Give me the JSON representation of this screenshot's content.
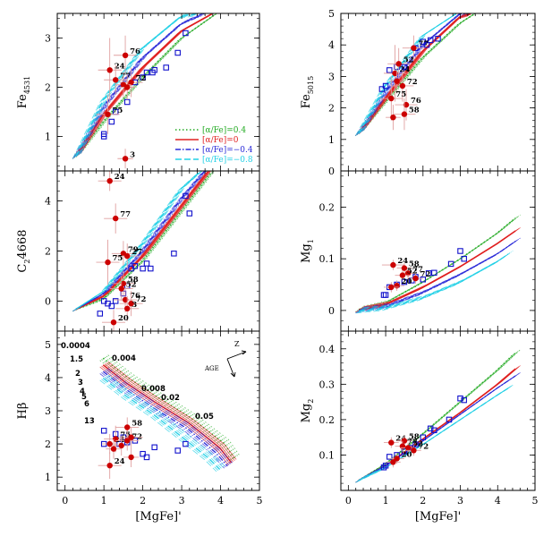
{
  "colors": {
    "alpha_0p4": "#22aa22",
    "alpha_0": "#e02020",
    "alpha_m0p4": "#2a2ad8",
    "alpha_m0p8": "#22d0e6",
    "observed": "#cc0000",
    "errorbar": "#e0a0a0",
    "comparison": "#1111cc"
  },
  "legend": {
    "entries": [
      "[α/Fe]=0.4",
      "[α/Fe]=0",
      "[α/Fe]=−0.4",
      "[α/Fe]=−0.8"
    ]
  },
  "chart_data": [
    {
      "type": "scatter",
      "panel": "Fe4531",
      "ylabel": "Fe4531",
      "xlabel": "",
      "xlim": [
        -0.2,
        5
      ],
      "ylim": [
        0.3,
        3.5
      ],
      "xticks": [
        0,
        1,
        2,
        3,
        4,
        5
      ],
      "yticks": [
        1,
        2,
        3
      ],
      "legend": "lower-right",
      "model_tracks": [
        {
          "name": "[α/Fe]=0.4",
          "x": [
            0.3,
            1.0,
            2.0,
            3.0,
            3.9
          ],
          "y": [
            0.6,
            1.3,
            2.2,
            3.0,
            3.5
          ]
        },
        {
          "name": "[α/Fe]=0",
          "x": [
            0.3,
            1.0,
            2.0,
            3.0,
            3.8
          ],
          "y": [
            0.6,
            1.45,
            2.4,
            3.15,
            3.5
          ]
        },
        {
          "name": "[α/Fe]=−0.4",
          "x": [
            0.3,
            1.0,
            2.0,
            3.0,
            3.6
          ],
          "y": [
            0.6,
            1.6,
            2.6,
            3.3,
            3.5
          ]
        },
        {
          "name": "[α/Fe]=−0.8",
          "x": [
            0.3,
            1.0,
            2.0,
            3.0,
            3.4
          ],
          "y": [
            0.6,
            1.75,
            2.8,
            3.45,
            3.5
          ]
        }
      ],
      "observed": [
        {
          "label": "76",
          "x": 1.55,
          "y": 2.65,
          "ex": 0.3,
          "ey": 0.4
        },
        {
          "label": "24",
          "x": 1.15,
          "y": 2.35,
          "ex": 0.3,
          "ey": 0.65
        },
        {
          "label": "77",
          "x": 1.3,
          "y": 2.15,
          "ex": 0.3,
          "ey": 0.3
        },
        {
          "label": "72",
          "x": 1.7,
          "y": 2.1,
          "ex": 0.3,
          "ey": 0.3
        },
        {
          "label": "",
          "x": 1.5,
          "y": 2.05,
          "ex": 0.2,
          "ey": 0.25
        },
        {
          "label": "",
          "x": 1.6,
          "y": 2.0,
          "ex": 0.2,
          "ey": 0.25
        },
        {
          "label": "75",
          "x": 1.1,
          "y": 1.45,
          "ex": 0.3,
          "ey": 0.4
        },
        {
          "label": "3",
          "x": 1.55,
          "y": 0.55,
          "ex": 0.2,
          "ey": 0.2
        }
      ],
      "comparison": {
        "x": [
          1.0,
          1.0,
          1.2,
          1.3,
          1.6,
          1.8,
          2.0,
          2.1,
          2.25,
          2.3,
          2.6,
          2.9,
          3.1
        ],
        "y": [
          1.0,
          1.05,
          1.3,
          1.5,
          1.7,
          2.1,
          2.2,
          2.3,
          2.3,
          2.35,
          2.4,
          2.7,
          3.1
        ]
      }
    },
    {
      "type": "scatter",
      "panel": "Fe5015",
      "ylabel": "Fe5015",
      "xlabel": "",
      "xlim": [
        -0.2,
        5
      ],
      "ylim": [
        0,
        5
      ],
      "xticks": [
        0,
        1,
        2,
        3,
        4,
        5
      ],
      "yticks": [
        0,
        1,
        2,
        3,
        4,
        5
      ],
      "model_tracks": [
        {
          "name": "[α/Fe]=0.4",
          "x": [
            0.3,
            1.0,
            2.0,
            3.0,
            3.4
          ],
          "y": [
            1.2,
            2.2,
            3.6,
            4.7,
            5.0
          ]
        },
        {
          "name": "[α/Fe]=0",
          "x": [
            0.3,
            1.0,
            2.0,
            3.0,
            3.3
          ],
          "y": [
            1.2,
            2.3,
            3.8,
            4.9,
            5.0
          ]
        },
        {
          "name": "[α/Fe]=−0.4",
          "x": [
            0.3,
            1.0,
            2.0,
            3.0,
            3.2
          ],
          "y": [
            1.2,
            2.5,
            4.0,
            5.0,
            5.0
          ]
        },
        {
          "name": "[α/Fe]=−0.8",
          "x": [
            0.3,
            1.0,
            2.0,
            2.9
          ],
          "y": [
            1.2,
            2.7,
            4.3,
            5.0
          ]
        }
      ],
      "observed": [
        {
          "label": "77",
          "x": 1.75,
          "y": 3.9,
          "ex": 0.3,
          "ey": 0.4
        },
        {
          "label": "52",
          "x": 1.35,
          "y": 3.4,
          "ex": 0.3,
          "ey": 0.5
        },
        {
          "label": "24",
          "x": 1.25,
          "y": 3.1,
          "ex": 0.3,
          "ey": 0.9
        },
        {
          "label": "72",
          "x": 1.45,
          "y": 2.7,
          "ex": 0.3,
          "ey": 0.5
        },
        {
          "label": "",
          "x": 1.3,
          "y": 2.85,
          "ex": 0.2,
          "ey": 0.4
        },
        {
          "label": "75",
          "x": 1.15,
          "y": 2.3,
          "ex": 0.3,
          "ey": 0.7
        },
        {
          "label": "76",
          "x": 1.55,
          "y": 2.1,
          "ex": 0.3,
          "ey": 0.5
        },
        {
          "label": "58",
          "x": 1.5,
          "y": 1.8,
          "ex": 0.3,
          "ey": 0.5
        },
        {
          "label": "",
          "x": 1.2,
          "y": 1.7,
          "ex": 0.2,
          "ey": 0.4
        }
      ],
      "comparison": {
        "x": [
          0.9,
          1.0,
          1.1,
          1.3,
          1.5,
          1.8,
          2.0,
          2.1,
          2.2,
          2.4
        ],
        "y": [
          2.6,
          2.7,
          3.2,
          3.3,
          3.3,
          3.9,
          4.1,
          4.0,
          4.15,
          4.2
        ]
      }
    },
    {
      "type": "scatter",
      "panel": "C24668",
      "ylabel": "C24668",
      "xlabel": "",
      "xlim": [
        -0.2,
        5
      ],
      "ylim": [
        -1.2,
        5.2
      ],
      "xticks": [
        0,
        1,
        2,
        3,
        4,
        5
      ],
      "yticks": [
        0,
        2,
        4
      ],
      "model_tracks": [
        {
          "name": "[α/Fe]=0.4",
          "x": [
            0.3,
            1.0,
            2.0,
            3.0,
            3.8
          ],
          "y": [
            -0.3,
            0.1,
            1.6,
            3.6,
            5.2
          ]
        },
        {
          "name": "[α/Fe]=0",
          "x": [
            0.3,
            1.0,
            2.0,
            3.0,
            3.7
          ],
          "y": [
            -0.3,
            0.2,
            1.8,
            3.8,
            5.2
          ]
        },
        {
          "name": "[α/Fe]=−0.4",
          "x": [
            0.3,
            1.0,
            2.0,
            3.0,
            3.6
          ],
          "y": [
            -0.3,
            0.3,
            2.0,
            4.1,
            5.2
          ]
        },
        {
          "name": "[α/Fe]=−0.8",
          "x": [
            0.3,
            1.0,
            2.0,
            3.0,
            3.5
          ],
          "y": [
            -0.3,
            0.4,
            2.3,
            4.5,
            5.2
          ]
        }
      ],
      "observed": [
        {
          "label": "24",
          "x": 1.15,
          "y": 4.8,
          "ex": 0.3,
          "ey": 0.4
        },
        {
          "label": "77",
          "x": 1.3,
          "y": 3.3,
          "ex": 0.3,
          "ey": 0.6
        },
        {
          "label": "79",
          "x": 1.5,
          "y": 1.9,
          "ex": 0.3,
          "ey": 0.5
        },
        {
          "label": "27",
          "x": 1.6,
          "y": 1.8,
          "ex": 0.3,
          "ey": 0.5
        },
        {
          "label": "75",
          "x": 1.1,
          "y": 1.55,
          "ex": 0.3,
          "ey": 0.9
        },
        {
          "label": "58",
          "x": 1.5,
          "y": 0.7,
          "ex": 0.3,
          "ey": 0.5
        },
        {
          "label": "52",
          "x": 1.45,
          "y": 0.5,
          "ex": 0.3,
          "ey": 0.5
        },
        {
          "label": "76",
          "x": 1.55,
          "y": 0.05,
          "ex": 0.3,
          "ey": 0.5
        },
        {
          "label": "72",
          "x": 1.7,
          "y": -0.1,
          "ex": 0.3,
          "ey": 0.5
        },
        {
          "label": "3",
          "x": 1.6,
          "y": -0.3,
          "ex": 0.3,
          "ey": 0.5
        },
        {
          "label": "20",
          "x": 1.25,
          "y": -0.85,
          "ex": 0.3,
          "ey": 0.5
        }
      ],
      "comparison": {
        "x": [
          0.9,
          1.0,
          1.1,
          1.2,
          1.3,
          1.5,
          1.6,
          1.7,
          1.8,
          2.0,
          2.1,
          2.2,
          2.8,
          3.1,
          3.2
        ],
        "y": [
          -0.5,
          0.0,
          -0.1,
          -0.2,
          0.0,
          0.3,
          0.6,
          1.3,
          1.4,
          1.3,
          1.5,
          1.3,
          1.9,
          4.2,
          3.5
        ]
      }
    },
    {
      "type": "scatter",
      "panel": "Mg1",
      "ylabel": "Mg1",
      "xlabel": "",
      "xlim": [
        -0.2,
        5
      ],
      "ylim": [
        -0.04,
        0.27
      ],
      "xticks": [
        0,
        1,
        2,
        3,
        4,
        5
      ],
      "yticks": [
        0,
        0.1,
        0.2
      ],
      "model_tracks": [
        {
          "name": "[α/Fe]=0.4",
          "x": [
            0.3,
            1.0,
            2.0,
            3.0,
            4.0,
            4.5
          ],
          "y": [
            0.003,
            0.015,
            0.055,
            0.1,
            0.15,
            0.18
          ]
        },
        {
          "name": "[α/Fe]=0",
          "x": [
            0.3,
            1.0,
            2.0,
            3.0,
            4.0,
            4.5
          ],
          "y": [
            0.002,
            0.012,
            0.045,
            0.085,
            0.13,
            0.155
          ]
        },
        {
          "name": "[α/Fe]=−0.4",
          "x": [
            0.3,
            1.0,
            2.0,
            3.0,
            4.0,
            4.5
          ],
          "y": [
            0.001,
            0.008,
            0.035,
            0.07,
            0.11,
            0.135
          ]
        },
        {
          "name": "[α/Fe]=−0.8",
          "x": [
            0.3,
            1.0,
            2.0,
            3.0,
            4.0,
            4.3
          ],
          "y": [
            0.0,
            0.005,
            0.025,
            0.055,
            0.095,
            0.11
          ]
        }
      ],
      "observed": [
        {
          "label": "24",
          "x": 1.2,
          "y": 0.088,
          "ex": 0.3,
          "ey": 0.01
        },
        {
          "label": "58",
          "x": 1.5,
          "y": 0.082,
          "ex": 0.2,
          "ey": 0.01
        },
        {
          "label": "77",
          "x": 1.6,
          "y": 0.072,
          "ex": 0.2,
          "ey": 0.01
        },
        {
          "label": "52",
          "x": 1.45,
          "y": 0.068,
          "ex": 0.2,
          "ey": 0.01
        },
        {
          "label": "72",
          "x": 1.8,
          "y": 0.062,
          "ex": 0.2,
          "ey": 0.01
        },
        {
          "label": "20",
          "x": 1.3,
          "y": 0.048,
          "ex": 0.2,
          "ey": 0.01
        },
        {
          "label": "",
          "x": 1.15,
          "y": 0.045,
          "ex": 0.2,
          "ey": 0.01
        }
      ],
      "comparison": {
        "x": [
          0.95,
          1.0,
          1.1,
          1.3,
          1.5,
          1.7,
          1.8,
          2.0,
          2.15,
          2.3,
          2.75,
          3.0,
          3.1
        ],
        "y": [
          0.03,
          0.03,
          0.045,
          0.05,
          0.055,
          0.058,
          0.065,
          0.06,
          0.072,
          0.073,
          0.09,
          0.115,
          0.1
        ]
      }
    },
    {
      "type": "scatter",
      "panel": "Hbeta",
      "ylabel": "Hβ",
      "xlabel": "[MgFe]'",
      "xlim": [
        -0.2,
        5
      ],
      "ylim": [
        0.6,
        5.4
      ],
      "xticks": [
        0,
        1,
        2,
        3,
        4,
        5
      ],
      "yticks": [
        1,
        2,
        3,
        4,
        5
      ],
      "metallicity_labels": [
        "0.0004",
        "0.004",
        "0.008",
        "0.02",
        "0.05"
      ],
      "age_labels": [
        "1.5",
        "2",
        "3",
        "4",
        "5",
        "6",
        "13"
      ],
      "vector_labels": [
        "Z",
        "AGE"
      ],
      "model_tracks": [
        {
          "name": "[α/Fe]=0.4",
          "x": [
            1.0,
            1.6,
            2.3,
            3.2,
            4.1,
            4.4
          ],
          "y": [
            4.6,
            4.05,
            3.5,
            2.85,
            2.05,
            1.55
          ]
        },
        {
          "name": "[α/Fe]=0",
          "x": [
            1.0,
            1.6,
            2.3,
            3.2,
            4.0,
            4.3
          ],
          "y": [
            4.4,
            3.85,
            3.3,
            2.65,
            1.9,
            1.45
          ]
        },
        {
          "name": "[α/Fe]=−0.4",
          "x": [
            1.0,
            1.6,
            2.3,
            3.2,
            3.9,
            4.2
          ],
          "y": [
            4.2,
            3.65,
            3.1,
            2.45,
            1.75,
            1.35
          ]
        },
        {
          "name": "[α/Fe]=−0.8",
          "x": [
            1.0,
            1.6,
            2.3,
            3.0,
            3.7,
            4.0
          ],
          "y": [
            4.0,
            3.45,
            2.9,
            2.25,
            1.6,
            1.25
          ]
        }
      ],
      "observed": [
        {
          "label": "58",
          "x": 1.6,
          "y": 2.5,
          "ex": 0.3,
          "ey": 0.3
        },
        {
          "label": "24",
          "x": 1.15,
          "y": 2.0,
          "ex": 0.2,
          "ey": 0.3
        },
        {
          "label": "75",
          "x": 1.3,
          "y": 2.15,
          "ex": 0.3,
          "ey": 0.4
        },
        {
          "label": "72",
          "x": 1.6,
          "y": 2.1,
          "ex": 0.3,
          "ey": 0.3
        },
        {
          "label": "",
          "x": 1.7,
          "y": 2.2,
          "ex": 0.3,
          "ey": 0.3
        },
        {
          "label": "",
          "x": 1.45,
          "y": 1.95,
          "ex": 0.2,
          "ey": 0.3
        },
        {
          "label": "",
          "x": 1.25,
          "y": 1.85,
          "ex": 0.2,
          "ey": 0.3
        },
        {
          "label": "24",
          "x": 1.15,
          "y": 1.35,
          "ex": 0.3,
          "ey": 0.4
        },
        {
          "label": "",
          "x": 1.7,
          "y": 1.6,
          "ex": 0.2,
          "ey": 0.3
        }
      ],
      "comparison": {
        "x": [
          1.0,
          1.0,
          1.3,
          1.4,
          1.5,
          1.6,
          1.8,
          2.0,
          2.1,
          2.3,
          2.9,
          3.1
        ],
        "y": [
          2.4,
          2.0,
          2.3,
          2.0,
          2.2,
          2.05,
          2.1,
          1.7,
          1.6,
          1.9,
          1.8,
          2.0
        ]
      }
    },
    {
      "type": "scatter",
      "panel": "Mg2",
      "ylabel": "Mg2",
      "xlabel": "[MgFe]'",
      "xlim": [
        -0.2,
        5
      ],
      "ylim": [
        0,
        0.45
      ],
      "xticks": [
        0,
        1,
        2,
        3,
        4,
        5
      ],
      "yticks": [
        0.1,
        0.2,
        0.3,
        0.4
      ],
      "model_tracks": [
        {
          "name": "[α/Fe]=0.4",
          "x": [
            0.3,
            1.0,
            2.0,
            3.0,
            4.0,
            4.5
          ],
          "y": [
            0.03,
            0.075,
            0.16,
            0.25,
            0.34,
            0.39
          ]
        },
        {
          "name": "[α/Fe]=0",
          "x": [
            0.3,
            1.0,
            2.0,
            3.0,
            4.0,
            4.5
          ],
          "y": [
            0.03,
            0.07,
            0.145,
            0.22,
            0.3,
            0.345
          ]
        },
        {
          "name": "[α/Fe]=−0.4",
          "x": [
            0.3,
            1.0,
            2.0,
            3.0,
            4.0,
            4.5
          ],
          "y": [
            0.03,
            0.07,
            0.14,
            0.215,
            0.29,
            0.325
          ]
        },
        {
          "name": "[α/Fe]=−0.8",
          "x": [
            0.3,
            1.0,
            2.0,
            3.0,
            4.0,
            4.3
          ],
          "y": [
            0.03,
            0.065,
            0.13,
            0.2,
            0.27,
            0.29
          ]
        }
      ],
      "observed": [
        {
          "label": "24",
          "x": 1.15,
          "y": 0.135,
          "ex": 0.2,
          "ey": 0.015
        },
        {
          "label": "58",
          "x": 1.5,
          "y": 0.14,
          "ex": 0.2,
          "ey": 0.015
        },
        {
          "label": "77",
          "x": 1.45,
          "y": 0.125,
          "ex": 0.2,
          "ey": 0.015
        },
        {
          "label": "52",
          "x": 1.6,
          "y": 0.12,
          "ex": 0.2,
          "ey": 0.015
        },
        {
          "label": "72",
          "x": 1.75,
          "y": 0.113,
          "ex": 0.2,
          "ey": 0.015
        },
        {
          "label": "20",
          "x": 1.3,
          "y": 0.09,
          "ex": 0.2,
          "ey": 0.015
        },
        {
          "label": "",
          "x": 1.2,
          "y": 0.08,
          "ex": 0.2,
          "ey": 0.015
        }
      ],
      "comparison": {
        "x": [
          0.95,
          1.0,
          1.1,
          1.3,
          1.5,
          1.7,
          1.8,
          2.0,
          2.2,
          2.3,
          2.7,
          3.0,
          3.1
        ],
        "y": [
          0.065,
          0.07,
          0.095,
          0.1,
          0.11,
          0.12,
          0.13,
          0.15,
          0.175,
          0.17,
          0.2,
          0.26,
          0.255
        ]
      }
    }
  ]
}
